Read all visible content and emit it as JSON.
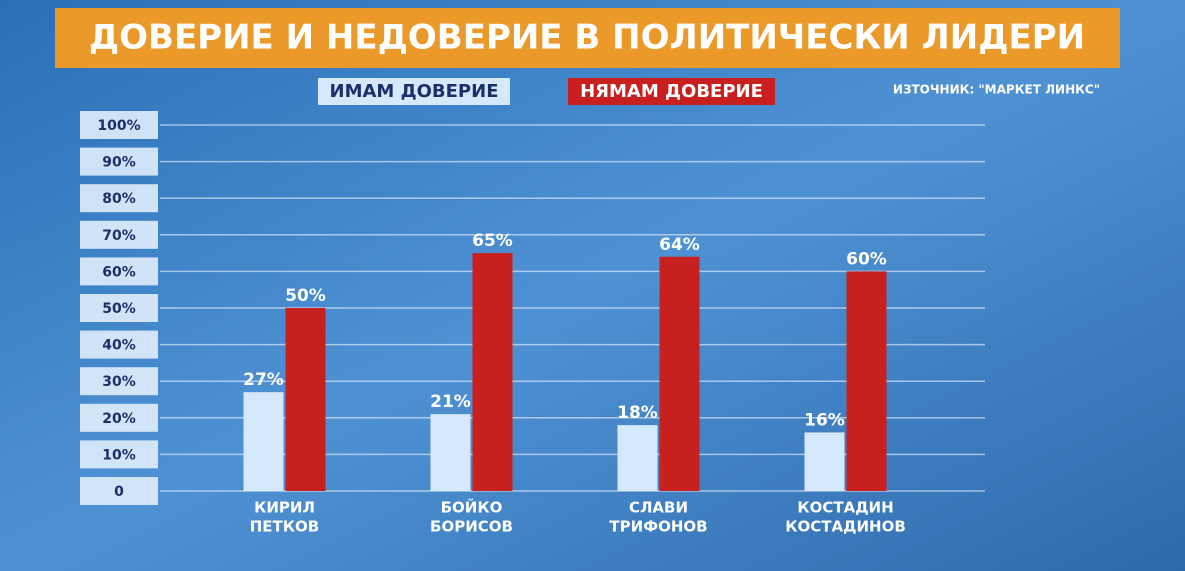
{
  "chart_data": {
    "type": "bar",
    "title": "ДОВЕРИЕ И НЕДОВЕРИЕ В ПОЛИТИЧЕСКИ ЛИДЕРИ",
    "source": "ИЗТОЧНИК: \"МАРКЕТ ЛИНКС\"",
    "categories": [
      [
        "КИРИЛ",
        "ПЕТКОВ"
      ],
      [
        "БОЙКО",
        "БОРИСОВ"
      ],
      [
        "СЛАВИ",
        "ТРИФОНОВ"
      ],
      [
        "КОСТАДИН",
        "КОСТАДИНОВ"
      ]
    ],
    "series": [
      {
        "name": "ИМАМ ДОВЕРИЕ",
        "color": "#d6e8fb",
        "values": [
          27,
          21,
          18,
          16
        ],
        "value_labels": [
          "27%",
          "21%",
          "18%",
          "16%"
        ]
      },
      {
        "name": "НЯМАМ ДОВЕРИЕ",
        "color": "#c8201e",
        "values": [
          50,
          65,
          64,
          60
        ],
        "value_labels": [
          "50%",
          "65%",
          "64%",
          "60%"
        ]
      }
    ],
    "ylim": [
      0,
      100
    ],
    "yticks": [
      0,
      {
        "value": 10,
        "label": "10%"
      },
      {
        "value": 20,
        "label": "20%"
      },
      {
        "value": 30,
        "label": "30%"
      },
      {
        "value": 40,
        "label": "40%"
      },
      {
        "value": 50,
        "label": "50%"
      },
      {
        "value": 60,
        "label": "60%"
      },
      {
        "value": 70,
        "label": "70%"
      },
      {
        "value": 80,
        "label": "80%"
      },
      {
        "value": 90,
        "label": "90%"
      },
      {
        "value": 100,
        "label": "100%"
      }
    ],
    "grid": true
  }
}
